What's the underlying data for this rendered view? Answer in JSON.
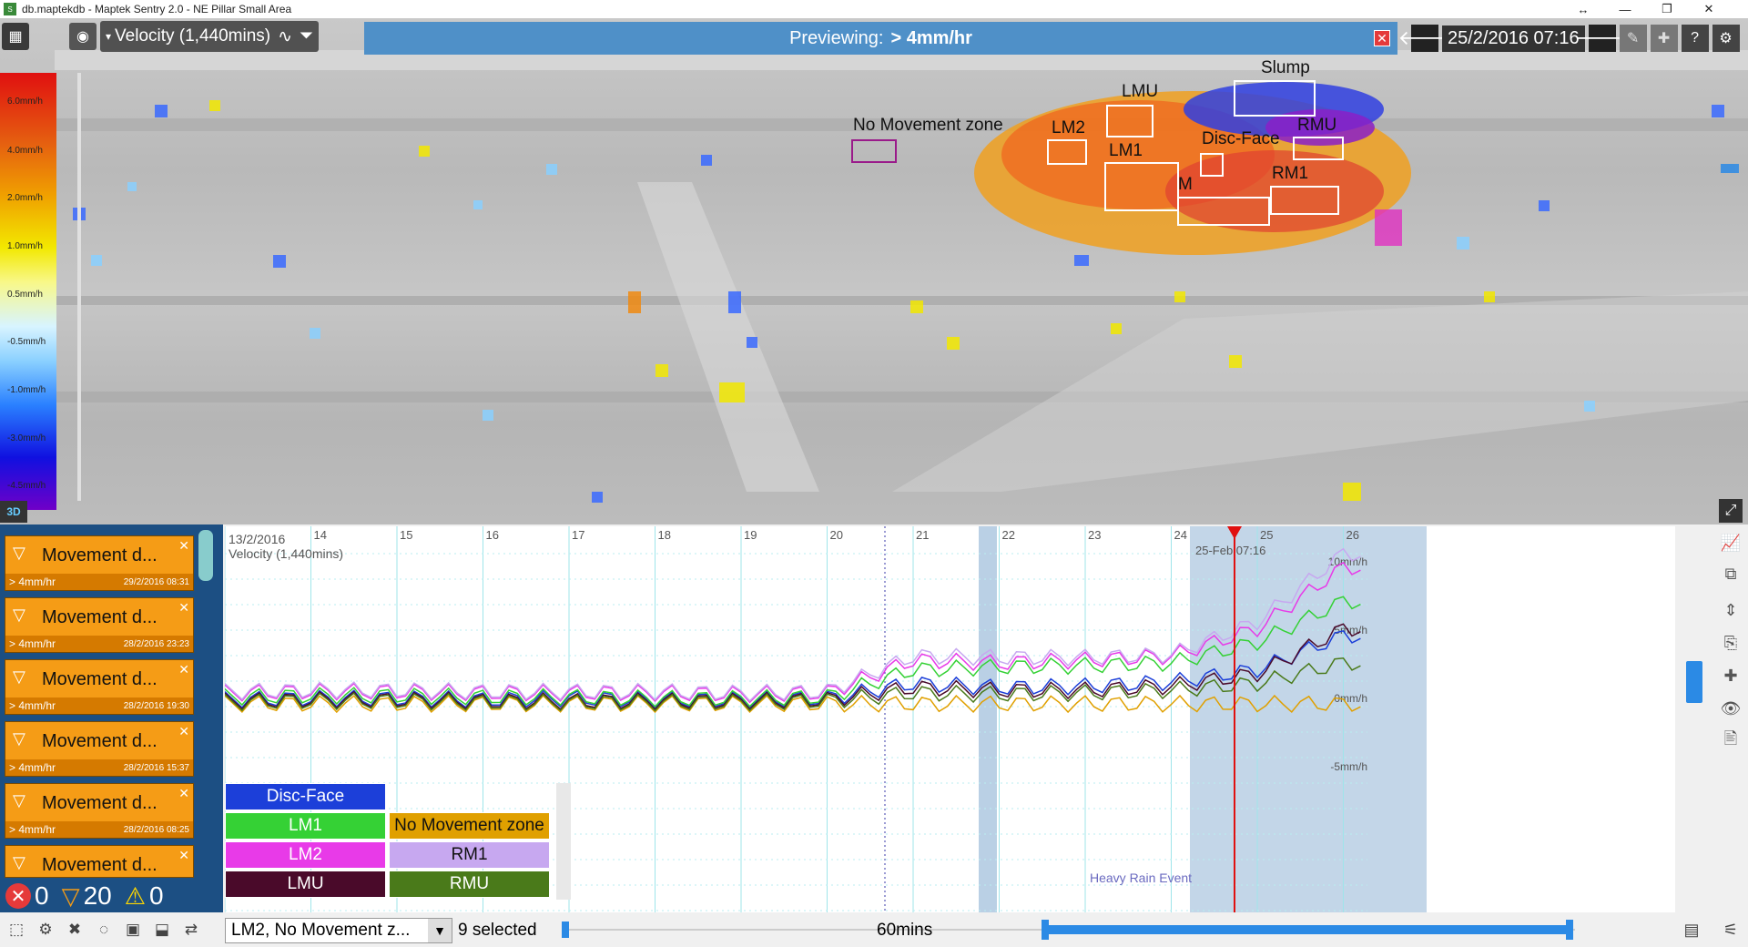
{
  "window": {
    "title": "db.maptekdb - Maptek Sentry 2.0 - NE Pillar Small Area",
    "controls": {
      "expand": "↔",
      "minimize": "—",
      "restore": "❐",
      "close": "✕"
    }
  },
  "map_toolbar": {
    "velocity_label": "Velocity (1,440mins)",
    "preview_prefix": "Previewing:",
    "preview_value": "> 4mm/hr",
    "preview_close": "✕",
    "date": "25/2/2016 07:16",
    "prev_arrow": "🡐",
    "next_arrow": "🡒"
  },
  "legend": {
    "labels": [
      "6.0mm/h",
      "4.0mm/h",
      "2.0mm/h",
      "1.0mm/h",
      "0.5mm/h",
      "-0.5mm/h",
      "-1.0mm/h",
      "-3.0mm/h",
      "-4.5mm/h"
    ],
    "button_3d": "3D"
  },
  "zones": {
    "no_movement": "No Movement zone",
    "lm2": "LM2",
    "lmu": "LMU",
    "lm1": "LM1",
    "m": "M",
    "slump": "Slump",
    "rmu": "RMU",
    "disc_face": "Disc-Face",
    "rm1": "RM1"
  },
  "alerts": {
    "items": [
      {
        "title": "Movement d...",
        "sub": "> 4mm/hr",
        "time": "29/2/2016 08:31"
      },
      {
        "title": "Movement d...",
        "sub": "> 4mm/hr",
        "time": "28/2/2016 23:23"
      },
      {
        "title": "Movement d...",
        "sub": "> 4mm/hr",
        "time": "28/2/2016 19:30"
      },
      {
        "title": "Movement d...",
        "sub": "> 4mm/hr",
        "time": "28/2/2016 15:37"
      },
      {
        "title": "Movement d...",
        "sub": "> 4mm/hr",
        "time": "28/2/2016 08:25"
      },
      {
        "title": "Movement d...",
        "sub": "",
        "time": ""
      }
    ],
    "counts": {
      "errors": "0",
      "movement": "20",
      "warnings": "0"
    }
  },
  "chart": {
    "header_date": "13/2/2016",
    "header_label": "Velocity (1,440mins)",
    "day_labels": [
      "14",
      "15",
      "16",
      "17",
      "18",
      "19",
      "20",
      "21",
      "22",
      "23",
      "24",
      "25",
      "26"
    ],
    "cursor_label": "25-Feb  07:16",
    "y_labels": [
      "10mm/h",
      "5mm/h",
      "0mm/h",
      "-5mm/h"
    ],
    "event_label": "Heavy Rain Event"
  },
  "chart_data": {
    "type": "line",
    "ylabel": "Velocity (1,440mins)",
    "y_ticks": [
      10,
      5,
      0,
      -5
    ],
    "x_ticks": [
      "13/2/2016",
      "14",
      "15",
      "16",
      "17",
      "18",
      "19",
      "20",
      "21",
      "22",
      "23",
      "24",
      "25",
      "26"
    ],
    "series": [
      {
        "name": "Disc-Face",
        "color": "#1c3fd9",
        "values": [
          0.3,
          0.4,
          0.4,
          0.3,
          0.4,
          0.3,
          0.3,
          0.4,
          1.5,
          1.2,
          1.3,
          1.6,
          2.5,
          5.0
        ]
      },
      {
        "name": "LM1",
        "color": "#35d135",
        "values": [
          0.5,
          0.6,
          0.6,
          0.5,
          0.5,
          0.4,
          0.4,
          0.5,
          2.5,
          2.7,
          2.8,
          3.0,
          4.5,
          7.5
        ]
      },
      {
        "name": "LM2",
        "color": "#e83ae8",
        "values": [
          0.8,
          0.9,
          0.9,
          0.8,
          0.8,
          0.8,
          0.7,
          0.8,
          3.2,
          3.0,
          3.2,
          3.5,
          5.5,
          10.0
        ]
      },
      {
        "name": "LMU",
        "color": "#4a0a2a",
        "values": [
          0.2,
          0.3,
          0.3,
          0.2,
          0.2,
          0.2,
          0.2,
          0.3,
          1.2,
          1.0,
          1.0,
          1.3,
          2.2,
          5.5
        ]
      },
      {
        "name": "No Movement zone",
        "color": "#e0a000",
        "values": [
          0.0,
          0.0,
          0.0,
          0.0,
          0.0,
          0.0,
          0.0,
          0.0,
          0.0,
          0.0,
          0.0,
          0.0,
          0.0,
          0.0
        ]
      },
      {
        "name": "RM1",
        "color": "#c7a8f0",
        "values": [
          0.9,
          1.0,
          1.0,
          0.9,
          0.9,
          0.9,
          0.8,
          0.9,
          3.5,
          3.4,
          3.4,
          3.6,
          6.0,
          11.0
        ]
      },
      {
        "name": "RMU",
        "color": "#4a7a1a",
        "values": [
          0.1,
          0.2,
          0.2,
          0.1,
          0.1,
          0.1,
          0.1,
          0.2,
          0.8,
          0.7,
          0.8,
          1.0,
          1.5,
          3.0
        ]
      }
    ]
  },
  "legend_table": [
    {
      "label": "Disc-Face",
      "bg": "#1c3fd9",
      "fg": "#ffffff"
    },
    {
      "label": "LM1",
      "bg": "#35d135",
      "fg": "#ffffff"
    },
    {
      "label": "No Movement zone",
      "bg": "#e0a000",
      "fg": "#111111"
    },
    {
      "label": "LM2",
      "bg": "#e83ae8",
      "fg": "#ffffff"
    },
    {
      "label": "RM1",
      "bg": "#c7a8f0",
      "fg": "#111111"
    },
    {
      "label": "LMU",
      "bg": "#4a0a2a",
      "fg": "#ffffff"
    },
    {
      "label": "RMU",
      "bg": "#4a7a1a",
      "fg": "#ffffff"
    }
  ],
  "bottom": {
    "combo_value": "LM2, No Movement z...",
    "selected": "9 selected",
    "interval": "60mins"
  }
}
